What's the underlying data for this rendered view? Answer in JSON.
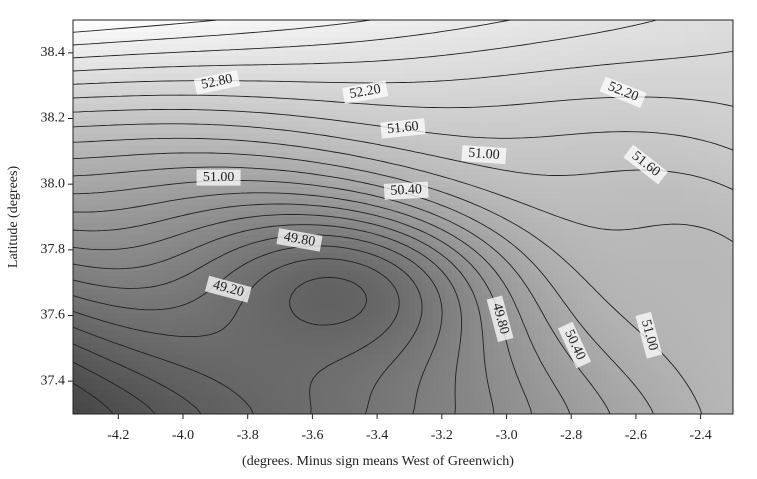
{
  "chart_data": {
    "type": "contour",
    "xlabel": "(degrees. Minus sign means West of Greenwich)",
    "ylabel": "Latitude (degrees)",
    "xlim": [
      -4.34,
      -2.3
    ],
    "ylim": [
      37.3,
      38.5
    ],
    "xticks": [
      -4.2,
      {
        "value": -4,
        "label": "-4.0"
      },
      -3.8,
      -3.6,
      -3.4,
      -3.2,
      {
        "value": -3,
        "label": "-3.0"
      },
      -2.8,
      -2.6,
      -2.4
    ],
    "yticks": [
      37.4,
      37.6,
      37.8,
      {
        "value": 38,
        "label": "38.0"
      },
      38.2,
      38.4
    ],
    "contour_labels": [
      {
        "label": "52.80",
        "value": 52.8,
        "x": -3.895,
        "y": 38.31
      },
      {
        "label": "52.20",
        "value": 52.2,
        "x": -3.437,
        "y": 38.28
      },
      {
        "label": "51.60",
        "value": 51.6,
        "x": -3.32,
        "y": 38.17
      },
      {
        "label": "51.00",
        "value": 51.0,
        "x": -3.89,
        "y": 38.02
      },
      {
        "label": "50.40",
        "value": 50.4,
        "x": -3.31,
        "y": 37.98
      },
      {
        "label": "49.80",
        "value": 49.8,
        "x": -3.64,
        "y": 37.83
      },
      {
        "label": "49.20",
        "value": 49.2,
        "x": -3.86,
        "y": 37.68
      },
      {
        "label": "51.00",
        "value": 51.0,
        "x": -3.07,
        "y": 38.09
      },
      {
        "label": "52.20",
        "value": 52.2,
        "x": -2.64,
        "y": 38.28
      },
      {
        "label": "51.60",
        "value": 51.6,
        "x": -2.57,
        "y": 38.06
      },
      {
        "label": "49.80",
        "value": 49.8,
        "x": -3.02,
        "y": 37.59
      },
      {
        "label": "50.40",
        "value": 50.4,
        "x": -2.79,
        "y": 37.51
      },
      {
        "label": "51.00",
        "value": 51.0,
        "x": -2.56,
        "y": 37.54
      }
    ]
  }
}
